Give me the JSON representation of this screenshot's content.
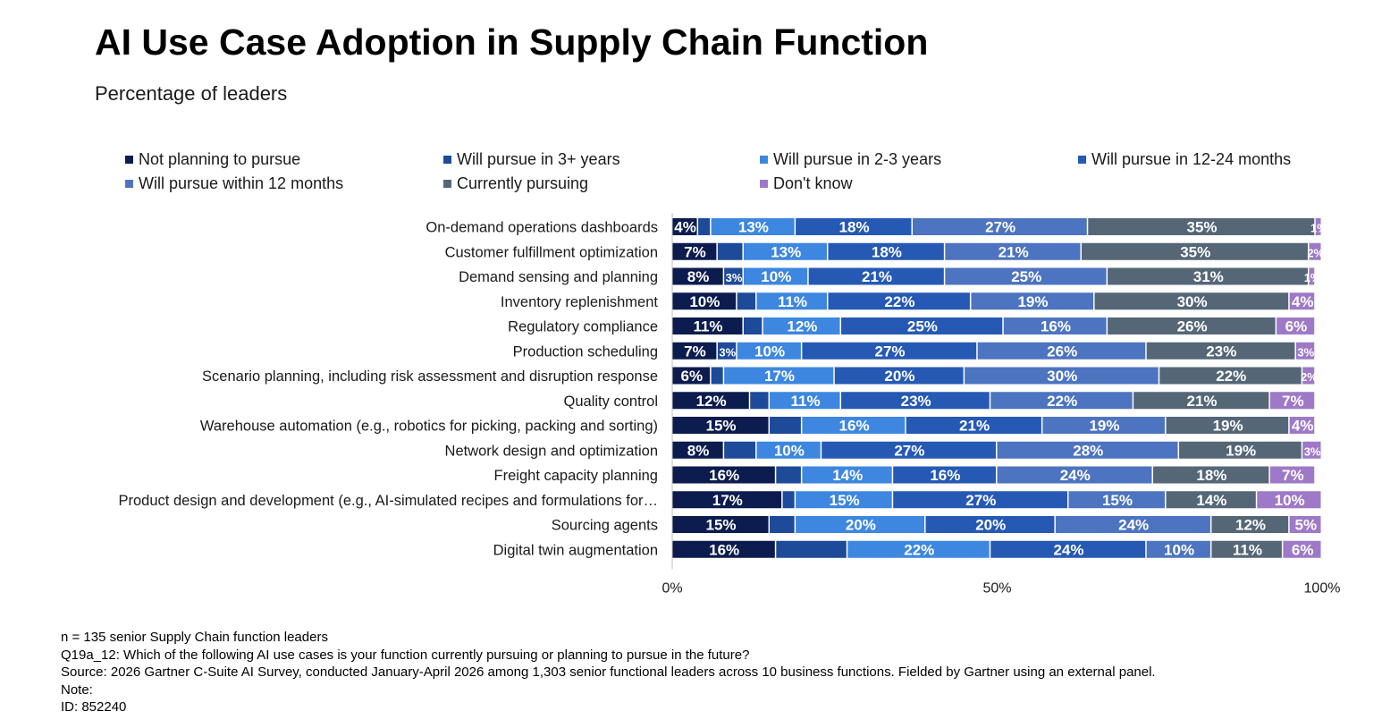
{
  "title": "AI Use Case Adoption in Supply Chain Function",
  "subtitle": "Percentage of leaders",
  "legend": [
    {
      "label": "Not planning to pursue",
      "color": "#0c1c4e"
    },
    {
      "label": "Will pursue in 3+ years",
      "color": "#1d4a99"
    },
    {
      "label": "Will pursue in 2-3 years",
      "color": "#3d87e0"
    },
    {
      "label": "Will pursue in 12-24 months",
      "color": "#2559b4"
    },
    {
      "label": "Will pursue within 12 months",
      "color": "#4d74c0"
    },
    {
      "label": "Currently pursuing",
      "color": "#556677"
    },
    {
      "label": "Don't know",
      "color": "#9e79c7"
    }
  ],
  "chart_data": {
    "type": "bar",
    "orientation": "horizontal",
    "stacked": true,
    "xlim": [
      0,
      100
    ],
    "xticks": [
      "0%",
      "50%",
      "100%"
    ],
    "categories": [
      "On-demand operations dashboards",
      "Customer fulfillment optimization",
      "Demand sensing and planning",
      "Inventory replenishment",
      "Regulatory compliance",
      "Production scheduling",
      "Scenario planning, including risk assessment and disruption response",
      "Quality control",
      "Warehouse automation (e.g., robotics for picking, packing and sorting)",
      "Network design and optimization",
      "Freight capacity planning",
      "Product design and development (e.g., AI-simulated recipes and formulations for…",
      "Sourcing agents",
      "Digital twin augmentation"
    ],
    "series": [
      {
        "name": "Not planning to pursue",
        "values": [
          4,
          7,
          8,
          10,
          11,
          7,
          6,
          12,
          15,
          8,
          16,
          17,
          15,
          16
        ],
        "labels": [
          "4%",
          "7%",
          "8%",
          "10%",
          "11%",
          "7%",
          "6%",
          "12%",
          "15%",
          "8%",
          "16%",
          "17%",
          "15%",
          "16%"
        ]
      },
      {
        "name": "Will pursue in 3+ years",
        "values": [
          2,
          4,
          3,
          3,
          3,
          3,
          2,
          3,
          5,
          5,
          4,
          2,
          4,
          11
        ],
        "labels": [
          "",
          "",
          "3%",
          "",
          "",
          "3%",
          "",
          "",
          "",
          "",
          "",
          "",
          "",
          ""
        ]
      },
      {
        "name": "Will pursue in 2-3 years",
        "values": [
          13,
          13,
          10,
          11,
          12,
          10,
          17,
          11,
          16,
          10,
          14,
          15,
          20,
          22
        ],
        "labels": [
          "13%",
          "13%",
          "10%",
          "11%",
          "12%",
          "10%",
          "17%",
          "11%",
          "16%",
          "10%",
          "14%",
          "15%",
          "20%",
          "22%"
        ]
      },
      {
        "name": "Will pursue in 12-24 months",
        "values": [
          18,
          18,
          21,
          22,
          25,
          27,
          20,
          23,
          21,
          27,
          16,
          27,
          20,
          24
        ],
        "labels": [
          "18%",
          "18%",
          "21%",
          "22%",
          "25%",
          "27%",
          "20%",
          "23%",
          "21%",
          "27%",
          "16%",
          "27%",
          "20%",
          "24%"
        ]
      },
      {
        "name": "Will pursue within 12 months",
        "values": [
          27,
          21,
          25,
          19,
          16,
          26,
          30,
          22,
          19,
          28,
          24,
          15,
          24,
          10
        ],
        "labels": [
          "27%",
          "21%",
          "25%",
          "19%",
          "16%",
          "26%",
          "30%",
          "22%",
          "19%",
          "28%",
          "24%",
          "15%",
          "24%",
          "10%"
        ]
      },
      {
        "name": "Currently pursuing",
        "values": [
          35,
          35,
          31,
          30,
          26,
          23,
          22,
          21,
          19,
          19,
          18,
          14,
          12,
          11
        ],
        "labels": [
          "35%",
          "35%",
          "31%",
          "30%",
          "26%",
          "23%",
          "22%",
          "21%",
          "19%",
          "19%",
          "18%",
          "14%",
          "12%",
          "11%"
        ]
      },
      {
        "name": "Don't know",
        "values": [
          1,
          2,
          1,
          4,
          6,
          3,
          2,
          7,
          4,
          3,
          7,
          10,
          5,
          6
        ],
        "labels": [
          "1%",
          "2%",
          "1%",
          "4%",
          "6%",
          "3%",
          "2%",
          "7%",
          "4%",
          "3%",
          "7%",
          "10%",
          "5%",
          "6%"
        ]
      }
    ]
  },
  "footnotes": {
    "n": "n = 135 senior Supply Chain function leaders",
    "question": "Q19a_12: Which of the following AI use cases is your function currently pursuing or planning to pursue in the future?",
    "source": "Source: 2026 Gartner C-Suite AI Survey, conducted January-April 2026 among 1,303 senior functional leaders across 10 business functions. Fielded by Gartner using an external panel.",
    "note": "Note:",
    "id": "ID: 852240"
  }
}
